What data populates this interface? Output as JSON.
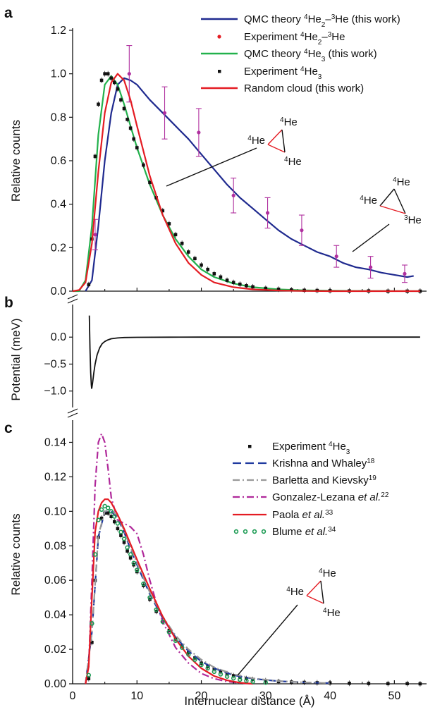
{
  "chart_data": {
    "type": "line",
    "xlabel": "Internuclear distance (Å)",
    "xlim": [
      0,
      55
    ],
    "xticks": [
      0,
      10,
      20,
      30,
      40,
      50
    ],
    "panels": [
      {
        "label": "a",
        "ylabel": "Relative counts",
        "ylim": [
          0,
          1.2
        ],
        "yticks": [
          "0.0",
          "0.2",
          "0.4",
          "0.6",
          "0.8",
          "1.0",
          "1.2"
        ],
        "legend": [
          "QMC theory 4He2–3He (this work)",
          "Experiment 4He2–3He",
          "QMC theory 4He3 (this work)",
          "Experiment 4He3",
          "Random cloud (this work)"
        ],
        "series": [
          {
            "name": "QMC theory 4He2–3He (this work)",
            "style": "line",
            "color": "#1f2a8f",
            "x": [
              2,
              3,
              4,
              5,
              6,
              7,
              8,
              9,
              10,
              12,
              14,
              16,
              18,
              20,
              22,
              24,
              26,
              28,
              30,
              32,
              34,
              36,
              38,
              40,
              42,
              44,
              46,
              48,
              50,
              52,
              53
            ],
            "y": [
              0.0,
              0.05,
              0.3,
              0.6,
              0.82,
              0.95,
              0.98,
              0.97,
              0.95,
              0.88,
              0.82,
              0.76,
              0.7,
              0.63,
              0.56,
              0.49,
              0.43,
              0.38,
              0.33,
              0.28,
              0.24,
              0.21,
              0.18,
              0.16,
              0.13,
              0.11,
              0.1,
              0.085,
              0.075,
              0.065,
              0.07
            ]
          },
          {
            "name": "Experiment 4He2–3He",
            "style": "points_err",
            "color": "#b0309f",
            "x": [
              3.5,
              8.8,
              14.3,
              19.6,
              25.0,
              30.3,
              35.6,
              41.0,
              46.3,
              51.6
            ],
            "y": [
              0.26,
              1.0,
              0.82,
              0.73,
              0.44,
              0.36,
              0.28,
              0.16,
              0.11,
              0.08
            ],
            "err": [
              0.07,
              0.13,
              0.12,
              0.11,
              0.08,
              0.07,
              0.07,
              0.05,
              0.05,
              0.04
            ]
          },
          {
            "name": "QMC theory 4He3 (this work)",
            "style": "line",
            "color": "#22b14c",
            "x": [
              0,
              1,
              2,
              3,
              4,
              5,
              6,
              7,
              8,
              9,
              10,
              12,
              14,
              16,
              18,
              20,
              22,
              25,
              28,
              32,
              36,
              40,
              45,
              50,
              54
            ],
            "y": [
              0,
              0,
              0.05,
              0.3,
              0.72,
              0.95,
              0.99,
              0.95,
              0.86,
              0.76,
              0.66,
              0.49,
              0.35,
              0.24,
              0.16,
              0.1,
              0.065,
              0.035,
              0.018,
              0.008,
              0.004,
              0.002,
              0.001,
              0.0005,
              0
            ]
          },
          {
            "name": "Experiment 4He3",
            "style": "points",
            "color": "#111111",
            "x": [
              2.5,
              3,
              3.5,
              4,
              4.5,
              5,
              5.5,
              6,
              6.5,
              7,
              7.5,
              8,
              8.5,
              9,
              9.5,
              10,
              11,
              12,
              13,
              14,
              15,
              16,
              17,
              18,
              19,
              20,
              21,
              22,
              23,
              24,
              25,
              26,
              27,
              28,
              30,
              32,
              34,
              36,
              38,
              40,
              43,
              46,
              49,
              52,
              54
            ],
            "y": [
              0.03,
              0.24,
              0.62,
              0.86,
              0.97,
              1.0,
              1.0,
              0.98,
              0.96,
              0.93,
              0.88,
              0.84,
              0.79,
              0.75,
              0.7,
              0.66,
              0.58,
              0.5,
              0.43,
              0.37,
              0.31,
              0.26,
              0.22,
              0.18,
              0.15,
              0.12,
              0.1,
              0.08,
              0.065,
              0.05,
              0.04,
              0.032,
              0.025,
              0.02,
              0.013,
              0.009,
              0.006,
              0.004,
              0.003,
              0.002,
              0.001,
              0.001,
              0.0,
              0.0,
              0.0
            ]
          },
          {
            "name": "Random cloud (this work)",
            "style": "line",
            "color": "#e41c23",
            "x": [
              0,
              1,
              2,
              3,
              4,
              5,
              6,
              7,
              8,
              9,
              10,
              12,
              14,
              16,
              18,
              20,
              22,
              25,
              28,
              32,
              36,
              40,
              45,
              50,
              54
            ],
            "y": [
              0,
              0.005,
              0.04,
              0.22,
              0.55,
              0.82,
              0.96,
              1.0,
              0.97,
              0.88,
              0.76,
              0.53,
              0.35,
              0.22,
              0.13,
              0.075,
              0.04,
              0.018,
              0.008,
              0.003,
              0.001,
              0,
              0,
              0,
              0
            ]
          }
        ],
        "annotations": [
          {
            "top": "4He",
            "left": "4He",
            "right": "4He"
          },
          {
            "top": "4He",
            "left": "4He",
            "right": "3He"
          }
        ]
      },
      {
        "label": "b",
        "ylabel": "Potential (meV)",
        "ylim": [
          -1.2,
          0.5
        ],
        "yticks": [
          "0.0",
          "−0.5",
          "−1.0"
        ],
        "series": [
          {
            "name": "",
            "style": "line",
            "color": "#111111",
            "x": [
              2.6,
              2.7,
              2.8,
              2.9,
              2.96,
              3.0,
              3.1,
              3.3,
              3.5,
              3.8,
              4.2,
              4.6,
              5.0,
              5.5,
              6,
              7,
              8,
              10,
              15,
              20,
              30,
              40,
              50,
              54
            ],
            "y": [
              0.4,
              -0.2,
              -0.65,
              -0.88,
              -0.95,
              -0.93,
              -0.85,
              -0.66,
              -0.5,
              -0.33,
              -0.2,
              -0.12,
              -0.08,
              -0.05,
              -0.03,
              -0.015,
              -0.008,
              -0.003,
              -0.001,
              0,
              0,
              0,
              0,
              0
            ]
          }
        ]
      },
      {
        "label": "c",
        "ylabel": "Relative counts",
        "ylim": [
          0,
          0.15
        ],
        "yticks": [
          "0.00",
          "0.02",
          "0.04",
          "0.06",
          "0.08",
          "0.10",
          "0.12",
          "0.14"
        ],
        "legend": [
          "Experiment 4He3",
          "Krishna and Whaley18",
          "Barletta and Kievsky19",
          "Gonzalez-Lezana et al.22",
          "Paola et al.33",
          "Blume et al.34"
        ],
        "series": [
          {
            "name": "Experiment 4He3",
            "style": "points",
            "color": "#111111",
            "x": [
              2.5,
              3,
              3.5,
              4,
              4.5,
              5,
              5.5,
              6,
              6.5,
              7,
              7.5,
              8,
              8.5,
              9,
              9.5,
              10,
              11,
              12,
              13,
              14,
              15,
              16,
              17,
              18,
              19,
              20,
              21,
              22,
              23,
              24,
              25,
              26,
              27,
              28,
              30,
              32,
              34,
              36,
              38,
              40,
              43,
              46,
              49,
              52,
              54
            ],
            "y": [
              0.003,
              0.024,
              0.06,
              0.085,
              0.096,
              0.099,
              0.099,
              0.097,
              0.094,
              0.09,
              0.086,
              0.082,
              0.077,
              0.073,
              0.069,
              0.065,
              0.057,
              0.049,
              0.042,
              0.036,
              0.031,
              0.026,
              0.022,
              0.018,
              0.015,
              0.012,
              0.01,
              0.0085,
              0.007,
              0.0058,
              0.0047,
              0.0038,
              0.003,
              0.0025,
              0.0018,
              0.0013,
              0.001,
              0.0008,
              0.0006,
              0.0005,
              0.0003,
              0.0002,
              0.0001,
              0.0001,
              0.0
            ]
          },
          {
            "name": "Krishna and Whaley18",
            "style": "dash",
            "color": "#1f3a9f",
            "x": [
              2,
              3,
              4,
              5,
              6,
              7,
              8,
              9,
              10,
              12,
              14,
              16,
              18,
              20,
              22,
              25,
              28,
              32,
              36,
              40
            ],
            "y": [
              0.0,
              0.03,
              0.085,
              0.1,
              0.1,
              0.096,
              0.088,
              0.078,
              0.069,
              0.052,
              0.038,
              0.027,
              0.019,
              0.013,
              0.009,
              0.005,
              0.003,
              0.0015,
              0.0008,
              0.0004
            ]
          },
          {
            "name": "Barletta and Kievsky19",
            "style": "dashdot",
            "color": "#999999",
            "x": [
              2,
              3,
              4,
              5,
              6,
              7,
              8,
              9,
              10,
              12,
              14,
              16,
              18,
              20,
              22,
              25,
              28,
              32,
              36,
              40
            ],
            "y": [
              0.0,
              0.03,
              0.086,
              0.1,
              0.101,
              0.097,
              0.089,
              0.079,
              0.07,
              0.053,
              0.039,
              0.028,
              0.02,
              0.014,
              0.0095,
              0.0055,
              0.0032,
              0.0016,
              0.0008,
              0.0004
            ]
          },
          {
            "name": "Gonzalez-Lezana et al.22",
            "style": "dashdot",
            "color": "#b0289a",
            "x": [
              2,
              2.5,
              3,
              3.5,
              4,
              4.5,
              5,
              5.5,
              6,
              7,
              8,
              9,
              10,
              11,
              12,
              13,
              14,
              16,
              18,
              20,
              22,
              24,
              26,
              28
            ],
            "y": [
              0.0,
              0.01,
              0.06,
              0.115,
              0.14,
              0.145,
              0.14,
              0.125,
              0.108,
              0.095,
              0.093,
              0.091,
              0.087,
              0.075,
              0.06,
              0.047,
              0.036,
              0.021,
              0.012,
              0.006,
              0.003,
              0.0013,
              0.0005,
              0.0
            ]
          },
          {
            "name": "Paola et al.33",
            "style": "line",
            "color": "#e41c23",
            "x": [
              2,
              2.5,
              3,
              3.5,
              4,
              4.5,
              5,
              5.5,
              6,
              7,
              8,
              9,
              10,
              12,
              14,
              16,
              18,
              20,
              22,
              24,
              26,
              28
            ],
            "y": [
              0.0,
              0.01,
              0.05,
              0.088,
              0.1,
              0.105,
              0.107,
              0.107,
              0.105,
              0.098,
              0.09,
              0.081,
              0.072,
              0.055,
              0.039,
              0.026,
              0.016,
              0.009,
              0.0045,
              0.002,
              0.0006,
              0.0
            ]
          },
          {
            "name": "Blume et al.34",
            "style": "dots",
            "color": "#1a9a52",
            "x": [
              2.5,
              3,
              3.5,
              4,
              4.5,
              5,
              5.5,
              6,
              6.5,
              7,
              7.5,
              8,
              8.5,
              9,
              9.5,
              10,
              11,
              12,
              13,
              14,
              15,
              16,
              17,
              18,
              19,
              20,
              21,
              22,
              23,
              24,
              25,
              26,
              27,
              28,
              30
            ],
            "y": [
              0.005,
              0.035,
              0.075,
              0.095,
              0.101,
              0.103,
              0.102,
              0.1,
              0.097,
              0.093,
              0.088,
              0.084,
              0.079,
              0.075,
              0.07,
              0.066,
              0.058,
              0.05,
              0.043,
              0.036,
              0.03,
              0.025,
              0.021,
              0.017,
              0.014,
              0.011,
              0.009,
              0.007,
              0.0055,
              0.0042,
              0.0032,
              0.0024,
              0.0018,
              0.0013,
              0.0007
            ]
          }
        ],
        "annotations": [
          {
            "top": "4He",
            "left": "4He",
            "right": "4He"
          }
        ]
      }
    ]
  }
}
